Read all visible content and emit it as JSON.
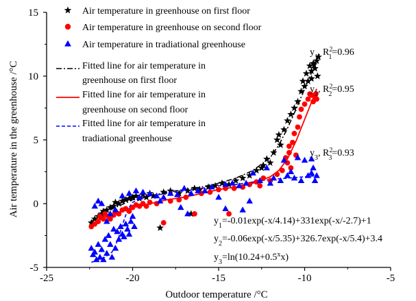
{
  "chart_data": {
    "type": "scatter",
    "xlabel": "Outdoor temperature /°C",
    "ylabel": "Air temperature in the greenhouse /°C",
    "xlim": [
      -25,
      -5
    ],
    "ylim": [
      -5,
      15
    ],
    "xticks": [
      -25,
      -20,
      -15,
      -10,
      -5
    ],
    "yticks": [
      -5,
      0,
      5,
      10,
      15
    ],
    "legend_position": "top-left",
    "series": [
      {
        "name": "Air temperature in greenhouse on first floor",
        "marker": "star",
        "color": "#000000",
        "points": [
          [
            -22.4,
            -1.5
          ],
          [
            -22.2,
            -1.2
          ],
          [
            -22.0,
            -1.0
          ],
          [
            -21.8,
            -0.8
          ],
          [
            -21.7,
            -0.6
          ],
          [
            -21.5,
            -0.5
          ],
          [
            -21.3,
            -0.3
          ],
          [
            -21.1,
            -0.2
          ],
          [
            -21.0,
            0.1
          ],
          [
            -20.8,
            0.0
          ],
          [
            -20.6,
            0.2
          ],
          [
            -20.4,
            0.3
          ],
          [
            -20.2,
            0.4
          ],
          [
            -20.0,
            0.5
          ],
          [
            -19.8,
            0.6
          ],
          [
            -19.6,
            0.4
          ],
          [
            -19.4,
            0.7
          ],
          [
            -19.2,
            0.5
          ],
          [
            -19.0,
            0.8
          ],
          [
            -18.8,
            0.6
          ],
          [
            -18.4,
            -1.9
          ],
          [
            -18.2,
            0.9
          ],
          [
            -17.8,
            1.0
          ],
          [
            -17.3,
            0.8
          ],
          [
            -16.8,
            1.0
          ],
          [
            -16.4,
            1.2
          ],
          [
            -16.1,
            1.1
          ],
          [
            -15.6,
            1.3
          ],
          [
            -15.2,
            1.4
          ],
          [
            -14.8,
            1.6
          ],
          [
            -14.4,
            1.5
          ],
          [
            -14.0,
            1.8
          ],
          [
            -13.6,
            2.0
          ],
          [
            -13.2,
            2.2
          ],
          [
            -12.8,
            2.6
          ],
          [
            -12.5,
            2.8
          ],
          [
            -12.2,
            3.5
          ],
          [
            -12.0,
            3.2
          ],
          [
            -11.8,
            4.0
          ],
          [
            -11.6,
            5.0
          ],
          [
            -11.4,
            4.6
          ],
          [
            -11.2,
            5.8
          ],
          [
            -11.0,
            6.5
          ],
          [
            -10.8,
            7.0
          ],
          [
            -10.6,
            7.5
          ],
          [
            -10.4,
            8.0
          ],
          [
            -10.2,
            8.8
          ],
          [
            -10.1,
            9.6
          ],
          [
            -10.0,
            9.2
          ],
          [
            -9.9,
            10.2
          ],
          [
            -9.8,
            9.6
          ],
          [
            -9.6,
            10.4
          ],
          [
            -9.5,
            11.0
          ],
          [
            -9.4,
            10.6
          ],
          [
            -9.3,
            11.2
          ],
          [
            -9.2,
            11.5
          ],
          [
            -9.6,
            9.8
          ],
          [
            -9.7,
            10.8
          ],
          [
            -9.25,
            10.0
          ],
          [
            -9.45,
            10.9
          ],
          [
            -11.5,
            5.4
          ],
          [
            -12.4,
            3.0
          ],
          [
            -16.6,
            -0.8
          ]
        ]
      },
      {
        "name": "Air temperature in greenhouse on second floor",
        "marker": "circle",
        "color": "#ff0000",
        "points": [
          [
            -22.4,
            -1.8
          ],
          [
            -22.2,
            -1.6
          ],
          [
            -22.0,
            -1.4
          ],
          [
            -21.9,
            -1.0
          ],
          [
            -21.7,
            -1.2
          ],
          [
            -21.6,
            -0.8
          ],
          [
            -21.4,
            -1.0
          ],
          [
            -21.3,
            -1.2
          ],
          [
            -21.1,
            -0.9
          ],
          [
            -21.0,
            -0.6
          ],
          [
            -20.8,
            -0.8
          ],
          [
            -20.6,
            -0.5
          ],
          [
            -20.4,
            -0.4
          ],
          [
            -20.2,
            -0.6
          ],
          [
            -20.0,
            -0.3
          ],
          [
            -19.8,
            -0.1
          ],
          [
            -19.6,
            -0.2
          ],
          [
            -19.4,
            0.0
          ],
          [
            -19.2,
            -0.2
          ],
          [
            -19.0,
            0.1
          ],
          [
            -18.6,
            0.0
          ],
          [
            -18.2,
            -1.5
          ],
          [
            -17.8,
            0.2
          ],
          [
            -17.3,
            0.3
          ],
          [
            -16.9,
            0.5
          ],
          [
            -16.4,
            -0.8
          ],
          [
            -16.0,
            0.8
          ],
          [
            -15.5,
            0.9
          ],
          [
            -15.0,
            1.1
          ],
          [
            -14.6,
            1.2
          ],
          [
            -14.1,
            1.2
          ],
          [
            -13.6,
            1.3
          ],
          [
            -13.2,
            1.5
          ],
          [
            -12.8,
            1.7
          ],
          [
            -12.4,
            2.0
          ],
          [
            -12.0,
            1.8
          ],
          [
            -11.6,
            2.3
          ],
          [
            -11.3,
            2.6
          ],
          [
            -11.0,
            3.2
          ],
          [
            -10.9,
            4.0
          ],
          [
            -10.7,
            4.8
          ],
          [
            -10.6,
            5.5
          ],
          [
            -10.4,
            6.0
          ],
          [
            -10.3,
            6.8
          ],
          [
            -10.2,
            7.4
          ],
          [
            -10.0,
            7.8
          ],
          [
            -9.8,
            8.2
          ],
          [
            -9.6,
            8.5
          ],
          [
            -9.5,
            8.0
          ],
          [
            -9.4,
            8.4
          ],
          [
            -9.3,
            8.2
          ],
          [
            -10.5,
            3.8
          ],
          [
            -10.8,
            2.8
          ],
          [
            -10.9,
            4.5
          ],
          [
            -11.1,
            3.6
          ],
          [
            -9.7,
            8.6
          ],
          [
            -9.35,
            8.6
          ],
          [
            -12.6,
            1.4
          ],
          [
            -14.4,
            -0.8
          ]
        ]
      },
      {
        "name": "Air temperature in tradiational greenhouse",
        "marker": "triangle",
        "color": "#0000ff",
        "points": [
          [
            -22.4,
            -3.5
          ],
          [
            -22.3,
            -4.0
          ],
          [
            -22.2,
            -3.8
          ],
          [
            -22.1,
            -4.4
          ],
          [
            -22.0,
            -3.2
          ],
          [
            -21.9,
            -4.2
          ],
          [
            -21.8,
            -3.6
          ],
          [
            -21.7,
            -4.4
          ],
          [
            -21.6,
            -2.8
          ],
          [
            -21.5,
            -3.9
          ],
          [
            -21.4,
            -2.5
          ],
          [
            -21.3,
            -3.2
          ],
          [
            -21.2,
            -4.2
          ],
          [
            -21.1,
            -2.0
          ],
          [
            -21.0,
            -3.5
          ],
          [
            -20.9,
            -2.2
          ],
          [
            -20.8,
            -2.8
          ],
          [
            -20.7,
            -1.8
          ],
          [
            -20.6,
            -2.4
          ],
          [
            -20.5,
            -2.6
          ],
          [
            -20.4,
            -1.6
          ],
          [
            -20.3,
            -2.0
          ],
          [
            -20.2,
            -2.4
          ],
          [
            -20.1,
            -1.4
          ],
          [
            -20.0,
            -1.0
          ],
          [
            -19.9,
            -1.8
          ],
          [
            -21.5,
            -1.4
          ],
          [
            -21.3,
            -0.8
          ],
          [
            -21.0,
            -0.5
          ],
          [
            -20.6,
            0.6
          ],
          [
            -20.2,
            0.8
          ],
          [
            -19.8,
            1.0
          ],
          [
            -19.4,
            0.9
          ],
          [
            -19.0,
            0.8
          ],
          [
            -18.6,
            0.6
          ],
          [
            -18.2,
            0.5
          ],
          [
            -17.8,
            0.8
          ],
          [
            -17.4,
            0.7
          ],
          [
            -17.0,
            1.2
          ],
          [
            -16.6,
            0.8
          ],
          [
            -16.2,
            1.0
          ],
          [
            -15.8,
            1.0
          ],
          [
            -15.4,
            1.3
          ],
          [
            -15.0,
            0.5
          ],
          [
            -14.6,
            1.5
          ],
          [
            -14.2,
            1.6
          ],
          [
            -13.8,
            1.4
          ],
          [
            -13.4,
            1.6
          ],
          [
            -13.0,
            2.4
          ],
          [
            -12.6,
            1.8
          ],
          [
            -12.2,
            2.8
          ],
          [
            -11.8,
            2.0
          ],
          [
            -11.4,
            1.8
          ],
          [
            -11.0,
            2.2
          ],
          [
            -10.6,
            2.0
          ],
          [
            -10.2,
            1.8
          ],
          [
            -9.8,
            2.2
          ],
          [
            -9.6,
            2.4
          ],
          [
            -9.4,
            1.8
          ],
          [
            -9.3,
            2.2
          ],
          [
            -10.4,
            3.6
          ],
          [
            -10.0,
            3.4
          ],
          [
            -9.6,
            3.5
          ],
          [
            -11.2,
            3.4
          ],
          [
            -13.2,
            0.2
          ],
          [
            -13.6,
            -0.5
          ],
          [
            -14.6,
            -0.4
          ],
          [
            -17.2,
            -0.3
          ],
          [
            -16.8,
            -0.8
          ],
          [
            -18.4,
            0.2
          ],
          [
            -19.6,
            0.5
          ],
          [
            -22.0,
            0.2
          ],
          [
            -21.8,
            0.0
          ],
          [
            -22.2,
            -0.2
          ],
          [
            -10.8,
            2.5
          ],
          [
            -12.0,
            1.6
          ],
          [
            -9.5,
            2.8
          ]
        ]
      }
    ],
    "fitted_lines": [
      {
        "name": "Fitted line for air temperature in greenhouse on first floor",
        "style": "dash-dot",
        "color": "#000000",
        "x": [
          -22.4,
          -22.0,
          -21.5,
          -21.0,
          -20.5,
          -20.0,
          -19.0,
          -18.0,
          -17.0,
          -16.0,
          -15.0,
          -14.0,
          -13.0,
          -12.0,
          -11.5,
          -11.0,
          -10.5,
          -10.0,
          -9.5,
          -9.3
        ],
        "y": [
          -1.4,
          -1.0,
          -0.6,
          -0.3,
          0.0,
          0.3,
          0.6,
          0.9,
          1.1,
          1.3,
          1.6,
          2.0,
          2.6,
          3.6,
          4.6,
          5.9,
          7.4,
          9.0,
          10.6,
          11.2
        ]
      },
      {
        "name": "Fitted line for air temperature in greenhouse on second floor",
        "style": "solid",
        "color": "#ff0000",
        "x": [
          -22.4,
          -22.0,
          -21.5,
          -21.0,
          -20.5,
          -20.0,
          -19.0,
          -18.0,
          -17.0,
          -16.0,
          -15.0,
          -14.0,
          -13.0,
          -12.0,
          -11.5,
          -11.0,
          -10.5,
          -10.0,
          -9.5,
          -9.3
        ],
        "y": [
          -1.6,
          -1.3,
          -1.0,
          -0.8,
          -0.5,
          -0.3,
          0.0,
          0.3,
          0.5,
          0.8,
          1.1,
          1.3,
          1.6,
          2.1,
          2.6,
          3.5,
          4.9,
          6.6,
          8.3,
          9.0
        ]
      },
      {
        "name": "Fitted line for air temperature in tradiational greenhouse",
        "style": "dashed",
        "color": "#0000ff",
        "x": [
          -22.4,
          -22.0,
          -21.6,
          -21.2,
          -21.0,
          -20.8,
          -20.6,
          -20.4,
          -20.2,
          -20.0,
          -19.5,
          -19.0,
          -18.0,
          -17.0,
          -16.0,
          -15.0,
          -14.0,
          -13.0,
          -12.0,
          -11.0,
          -10.0,
          -9.3
        ],
        "y": [
          -4.6,
          -4.4,
          -4.2,
          -3.8,
          -3.3,
          -2.6,
          -1.7,
          -0.9,
          -0.3,
          0.1,
          0.4,
          0.6,
          0.8,
          1.0,
          1.2,
          1.4,
          1.5,
          1.7,
          1.9,
          2.0,
          2.1,
          2.2
        ]
      }
    ],
    "annotations": {
      "r2_y1": {
        "main": "y",
        "sub": "1",
        "mid": ", R",
        "sup": "2",
        "sub2": "1",
        "tail": "=0.96"
      },
      "r2_y2": {
        "main": "y",
        "sub": "2",
        "mid": ", R",
        "sup": "2",
        "sub2": "2",
        "tail": "=0.95"
      },
      "r2_y3": {
        "main": "y",
        "sub": "3",
        "mid": ", R",
        "sup": "2",
        "sub2": "3",
        "tail": "=0.93"
      },
      "eq1": {
        "main": "y",
        "sub": "1",
        "tail": "=-0.01exp(-x/4.14)+331exp(-x/-2.7)+1"
      },
      "eq2": {
        "main": "y",
        "sub": "2",
        "tail": "=-0.06exp(-x/5.35)+326.7exp(-x/5.4)+3.4"
      },
      "eq3": {
        "main": "y",
        "sub": "3",
        "mid": "=ln(10.24+0.5",
        "sup": "x",
        "tail": "x)"
      }
    }
  }
}
